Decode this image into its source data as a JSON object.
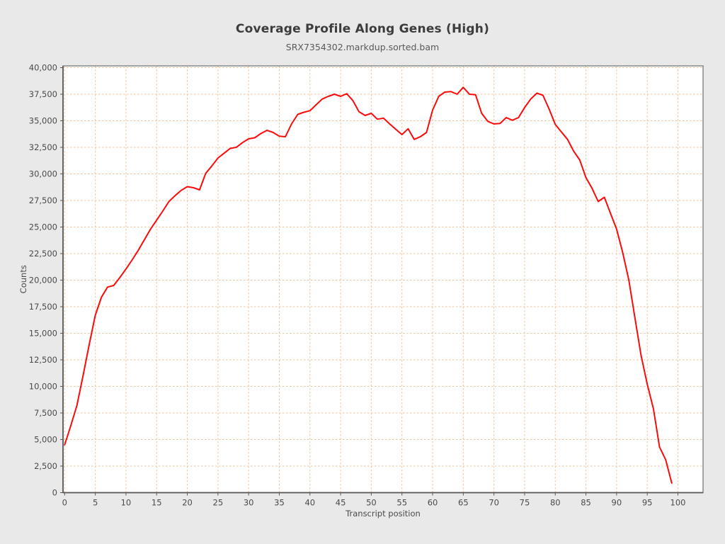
{
  "page": {
    "background": "#e9e9e9"
  },
  "header": {
    "title": "Coverage Profile Along Genes (High)",
    "subtitle": "SRX7354302.markdup.sorted.bam"
  },
  "chart_data": {
    "type": "line",
    "title": "Coverage Profile Along Genes (High)",
    "subtitle": "SRX7354302.markdup.sorted.bam",
    "xlabel": "Transcript position",
    "ylabel": "Counts",
    "xlim": [
      0,
      104
    ],
    "ylim": [
      0,
      40000
    ],
    "x_ticks": [
      0,
      5,
      10,
      15,
      20,
      25,
      30,
      35,
      40,
      45,
      50,
      55,
      60,
      65,
      70,
      75,
      80,
      85,
      90,
      95,
      100
    ],
    "y_ticks": [
      0,
      2500,
      5000,
      7500,
      10000,
      12500,
      15000,
      17500,
      20000,
      22500,
      25000,
      27500,
      30000,
      32500,
      35000,
      37500,
      40000
    ],
    "grid": "dashed",
    "legend": "none",
    "line_color": "#fb0a0a",
    "grid_color": "#f0c49c",
    "plot_bg": "#ffffff",
    "border_color": "#7a7a7a",
    "x": [
      0,
      1,
      2,
      3,
      4,
      5,
      6,
      7,
      8,
      9,
      10,
      11,
      12,
      13,
      14,
      15,
      16,
      17,
      18,
      19,
      20,
      21,
      22,
      23,
      24,
      25,
      26,
      27,
      28,
      29,
      30,
      31,
      32,
      33,
      34,
      35,
      36,
      37,
      38,
      39,
      40,
      41,
      42,
      43,
      44,
      45,
      46,
      47,
      48,
      49,
      50,
      51,
      52,
      53,
      54,
      55,
      56,
      57,
      58,
      59,
      60,
      61,
      62,
      63,
      64,
      65,
      66,
      67,
      68,
      69,
      70,
      71,
      72,
      73,
      74,
      75,
      76,
      77,
      78,
      79,
      80,
      81,
      82,
      83,
      84,
      85,
      86,
      87,
      88,
      89,
      90,
      91,
      92,
      93,
      94,
      95,
      96,
      97,
      98,
      99
    ],
    "values": [
      4500,
      6300,
      8200,
      11000,
      13900,
      16700,
      18400,
      19350,
      19500,
      20250,
      21050,
      21900,
      22800,
      23800,
      24800,
      25650,
      26500,
      27400,
      27950,
      28450,
      28800,
      28700,
      28500,
      30050,
      30750,
      31500,
      31950,
      32400,
      32500,
      32950,
      33300,
      33400,
      33800,
      34100,
      33900,
      33550,
      33500,
      34700,
      35600,
      35800,
      35950,
      36500,
      37050,
      37300,
      37500,
      37300,
      37550,
      36900,
      35850,
      35500,
      35700,
      35150,
      35250,
      34700,
      34200,
      33700,
      34250,
      33250,
      33500,
      33900,
      36000,
      37300,
      37700,
      37750,
      37500,
      38150,
      37500,
      37450,
      35700,
      34950,
      34700,
      34750,
      35300,
      35050,
      35300,
      36250,
      37050,
      37600,
      37400,
      36100,
      34650,
      33950,
      33250,
      32150,
      31300,
      29650,
      28650,
      27400,
      27800,
      26300,
      24800,
      22600,
      20000,
      16400,
      12900,
      10200,
      7900,
      4300,
      3100,
      900
    ]
  }
}
